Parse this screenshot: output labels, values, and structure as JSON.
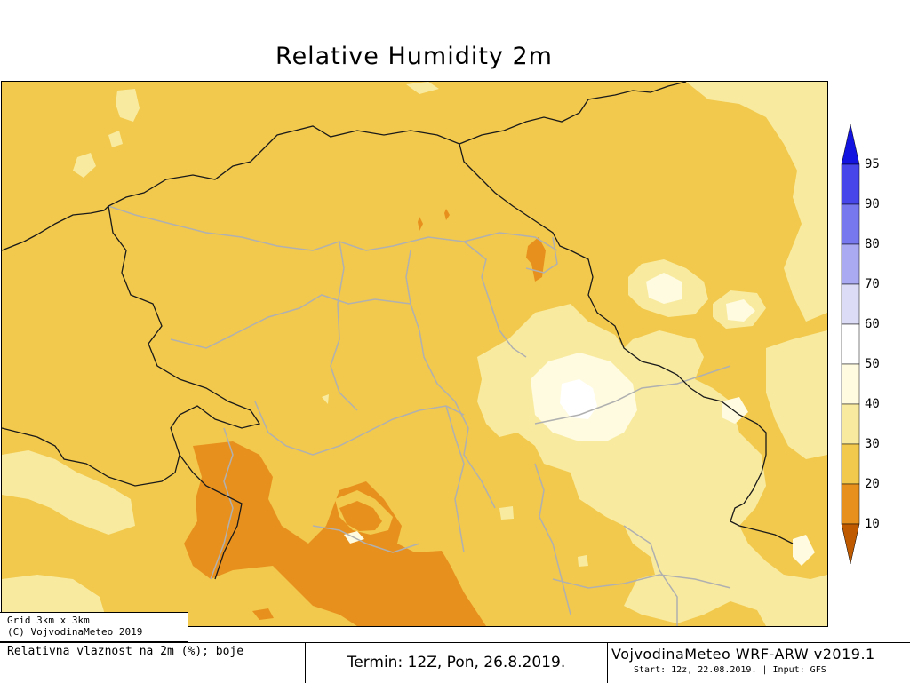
{
  "title": "Relative Humidity 2m",
  "credit": {
    "grid": "Grid 3km x 3km",
    "copyright": "(C) VojvodinaMeteo 2019"
  },
  "footer": {
    "description": "Relativna vlaznost na 2m (%); boje",
    "termin": "Termin: 12Z, Pon, 26.8.2019.",
    "model": "VojvodinaMeteo WRF-ARW v2019.1",
    "start": "Start: 12z, 22.08.2019. | Input: GFS"
  },
  "legend": {
    "labels": [
      "95",
      "90",
      "80",
      "70",
      "60",
      "50",
      "40",
      "30",
      "20",
      "10"
    ],
    "colors": {
      "below_10": "#c05a00",
      "10_20": "#e8901e",
      "20_30": "#f2c94c",
      "30_40": "#f8eba0",
      "40_50": "#fffbe0",
      "50_60": "#ffffff",
      "60_70": "#dcdcf6",
      "70_80": "#aaaaf2",
      "80_90": "#7878ee",
      "90_95": "#4646ea",
      "above_95": "#1414e0"
    }
  },
  "map": {
    "colors": {
      "base": "#f2c94c",
      "orange": "#e8901e",
      "light": "#f8eba0",
      "lighter": "#fffbe0",
      "white": "#ffffff",
      "border": "#1a1a1a",
      "admin": "#b0b0b0"
    }
  }
}
